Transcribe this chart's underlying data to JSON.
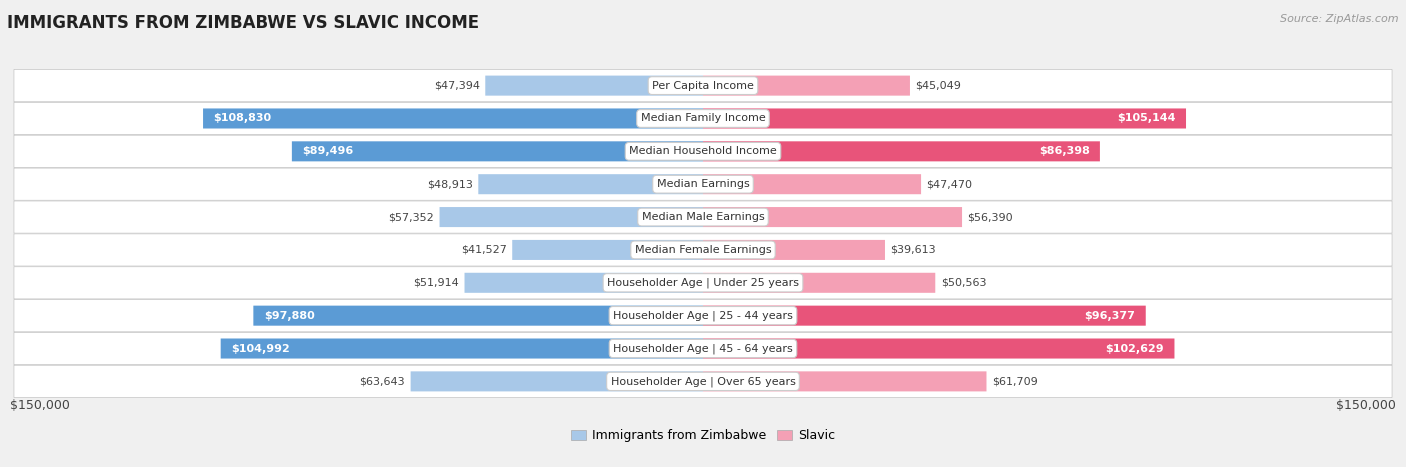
{
  "title": "IMMIGRANTS FROM ZIMBABWE VS SLAVIC INCOME",
  "source": "Source: ZipAtlas.com",
  "categories": [
    "Per Capita Income",
    "Median Family Income",
    "Median Household Income",
    "Median Earnings",
    "Median Male Earnings",
    "Median Female Earnings",
    "Householder Age | Under 25 years",
    "Householder Age | 25 - 44 years",
    "Householder Age | 45 - 64 years",
    "Householder Age | Over 65 years"
  ],
  "zimbabwe_values": [
    47394,
    108830,
    89496,
    48913,
    57352,
    41527,
    51914,
    97880,
    104992,
    63643
  ],
  "slavic_values": [
    45049,
    105144,
    86398,
    47470,
    56390,
    39613,
    50563,
    96377,
    102629,
    61709
  ],
  "zimbabwe_labels": [
    "$47,394",
    "$108,830",
    "$89,496",
    "$48,913",
    "$57,352",
    "$41,527",
    "$51,914",
    "$97,880",
    "$104,992",
    "$63,643"
  ],
  "slavic_labels": [
    "$45,049",
    "$105,144",
    "$86,398",
    "$47,470",
    "$56,390",
    "$39,613",
    "$50,563",
    "$96,377",
    "$102,629",
    "$61,709"
  ],
  "zimbabwe_color_light": "#a8c8e8",
  "zimbabwe_color_dark": "#5b9bd5",
  "slavic_color_light": "#f4a0b5",
  "slavic_color_dark": "#e8547a",
  "max_value": 150000,
  "x_label_left": "$150,000",
  "x_label_right": "$150,000",
  "legend_zimbabwe": "Immigrants from Zimbabwe",
  "legend_slavic": "Slavic",
  "background_color": "#f0f0f0",
  "row_bg_color": "#ffffff",
  "bar_height": 0.6,
  "inside_label_threshold": 75000
}
